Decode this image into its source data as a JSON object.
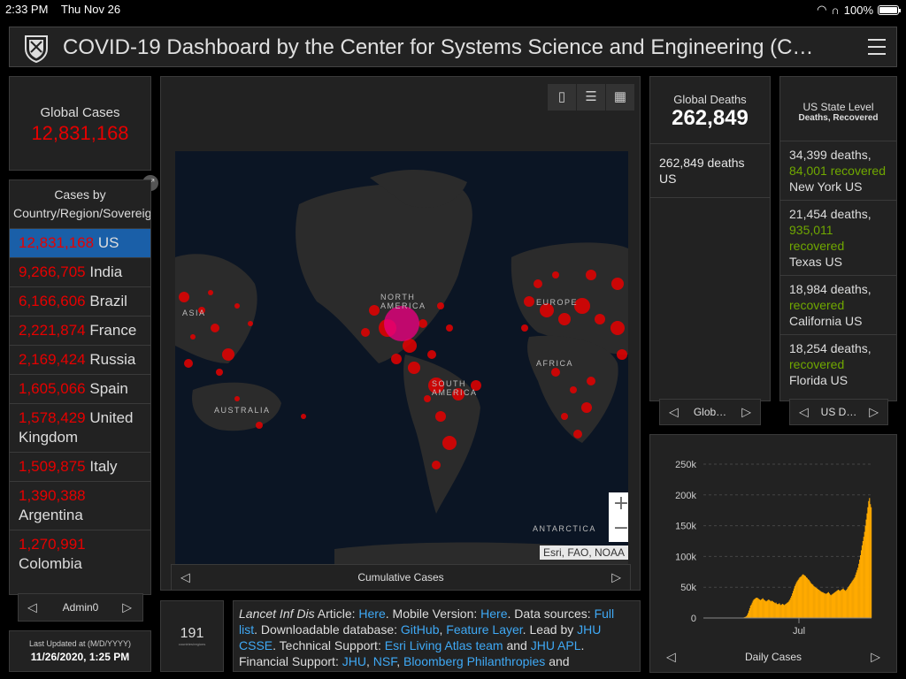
{
  "status_bar": {
    "time": "2:33 PM",
    "date": "Thu Nov 26",
    "battery": "100%"
  },
  "header": {
    "title": "COVID-19 Dashboard by the Center for Systems Science and Engineering (C…"
  },
  "global_cases": {
    "label": "Global Cases",
    "value": "12,831,168"
  },
  "cases_list": {
    "header": "Cases by Country/Region/Sovereignty",
    "items": [
      {
        "value": "12,831,168",
        "name": "US"
      },
      {
        "value": "9,266,705",
        "name": "India"
      },
      {
        "value": "6,166,606",
        "name": "Brazil"
      },
      {
        "value": "2,221,874",
        "name": "France"
      },
      {
        "value": "2,169,424",
        "name": "Russia"
      },
      {
        "value": "1,605,066",
        "name": "Spain"
      },
      {
        "value": "1,578,429",
        "name": "United Kingdom"
      },
      {
        "value": "1,509,875",
        "name": "Italy"
      },
      {
        "value": "1,390,388",
        "name": "Argentina"
      },
      {
        "value": "1,270,991",
        "name": "Colombia"
      }
    ],
    "pager_label": "Admin0"
  },
  "last_updated": {
    "label": "Last Updated at (M/D/YYYY)",
    "value": "11/26/2020, 1:25 PM"
  },
  "map": {
    "labels": {
      "north_america": "NORTH AMERICA",
      "south_america": "SOUTH AMERICA",
      "europe": "EUROPE",
      "africa": "AFRICA",
      "asia": "ASIA",
      "australia": "AUSTRALIA",
      "antarctica": "ANTARCTICA"
    },
    "attribution": "Esri, FAO, NOAA",
    "tab_label": "Cumulative Cases",
    "tools": [
      "bookmark-icon",
      "list-icon",
      "qr-grid-icon"
    ],
    "zoom_in": "+",
    "zoom_out": "−"
  },
  "count_panel": {
    "value": "191",
    "label": "countries/regions"
  },
  "info": {
    "t1": "Lancet Inf Dis",
    "t2": " Article: ",
    "l1": "Here",
    "t3": ". Mobile Version: ",
    "l2": "Here",
    "t4": ". Data sources: ",
    "l3": "Full list",
    "t5": ". Downloadable database: ",
    "l4": "GitHub",
    "t6": ", ",
    "l5": "Feature Layer",
    "t7": ". Lead by ",
    "l6": "JHU CSSE",
    "t8": ". Technical Support: ",
    "l7": "Esri Living Atlas team",
    "t9": " and ",
    "l8": "JHU APL",
    "t10": ". Financial Support: ",
    "l9": "JHU",
    "t11": ", ",
    "l10": "NSF",
    "t12": ", ",
    "l11": "Bloomberg Philanthropies",
    "t13": " and"
  },
  "global_deaths": {
    "label": "Global Deaths",
    "value": "262,849",
    "detail_value": "262,849",
    "detail_text": " deaths",
    "detail_place": "US",
    "pager_label": "Glob…"
  },
  "us_state": {
    "title": "US State Level",
    "subtitle": "Deaths, Recovered",
    "items": [
      {
        "deaths": "34,399",
        "deaths_label": "deaths,",
        "recovered": "84,001",
        "recovered_label": "recovered",
        "place": "New York US"
      },
      {
        "deaths": "21,454",
        "deaths_label": "deaths,",
        "recovered": "935,011",
        "recovered_label": "recovered",
        "place": "Texas US"
      },
      {
        "deaths": "18,984",
        "deaths_label": "deaths,",
        "recovered": "",
        "recovered_label": "recovered",
        "place": "California US"
      },
      {
        "deaths": "18,254",
        "deaths_label": "deaths,",
        "recovered": "",
        "recovered_label": "recovered",
        "place": "Florida US"
      }
    ],
    "pager_label": "US D…"
  },
  "chart_data": {
    "type": "bar",
    "title": "Daily Cases",
    "ylim": [
      0,
      250000
    ],
    "y_ticks": [
      "0",
      "50k",
      "100k",
      "150k",
      "200k",
      "250k"
    ],
    "x_tick": "Jul",
    "values": [
      0,
      0,
      0,
      0,
      0,
      0,
      0,
      0,
      0,
      0,
      0,
      0,
      0,
      0,
      0,
      0,
      0,
      0,
      0,
      0,
      0,
      0,
      0,
      0,
      0,
      0,
      0,
      0,
      0,
      0,
      0,
      0,
      0,
      0,
      0,
      0,
      0,
      0,
      0,
      0,
      0,
      0,
      0,
      0,
      0,
      0,
      0,
      0,
      0,
      1000,
      1500,
      2000,
      3000,
      5000,
      8000,
      12000,
      16000,
      20000,
      22000,
      25000,
      28000,
      30000,
      31000,
      32000,
      33000,
      33000,
      32000,
      31000,
      30000,
      29000,
      30000,
      31000,
      32000,
      30000,
      29000,
      28000,
      27000,
      28000,
      29000,
      30000,
      29000,
      28000,
      27000,
      28000,
      27000,
      26000,
      25000,
      24000,
      25000,
      23000,
      22000,
      23000,
      24000,
      22000,
      21000,
      22000,
      23000,
      22000,
      21000,
      22000,
      23000,
      24000,
      25000,
      26000,
      28000,
      30000,
      33000,
      36000,
      40000,
      44000,
      48000,
      52000,
      55000,
      58000,
      60000,
      62000,
      64000,
      66000,
      67000,
      68000,
      70000,
      71000,
      70000,
      69000,
      68000,
      66000,
      65000,
      63000,
      62000,
      60000,
      58000,
      56000,
      55000,
      54000,
      52000,
      51000,
      50000,
      49000,
      48000,
      47000,
      46000,
      45000,
      44000,
      43000,
      42000,
      42000,
      41000,
      40000,
      40000,
      39000,
      40000,
      41000,
      42000,
      40000,
      38000,
      37000,
      38000,
      39000,
      40000,
      41000,
      42000,
      43000,
      44000,
      45000,
      46000,
      45000,
      44000,
      45000,
      46000,
      47000,
      48000,
      46000,
      45000,
      44000,
      46000,
      48000,
      50000,
      52000,
      54000,
      56000,
      58000,
      60000,
      62000,
      64000,
      66000,
      70000,
      74000,
      78000,
      82000,
      88000,
      95000,
      102000,
      110000,
      118000,
      125000,
      132000,
      140000,
      150000,
      160000,
      170000,
      180000,
      190000,
      195000,
      185000,
      180000
    ],
    "bar_color": "#ffaa00"
  },
  "chart_pager_label": "Daily Cases"
}
